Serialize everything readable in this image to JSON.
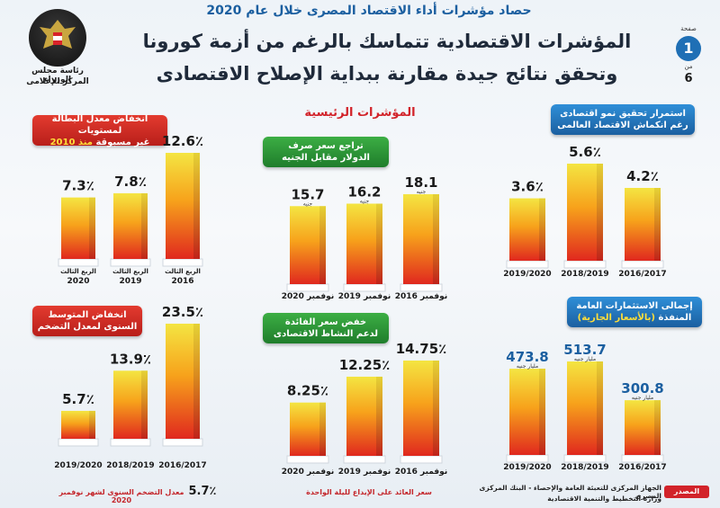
{
  "header": {
    "top_strip": "حصاد مؤشرات أداء الاقتصاد المصرى خلال عام 2020",
    "title_line_1": "المؤشرات الاقتصادية تتماسك بالرغم من أزمة كورونا",
    "title_line_2": "وتحقق نتائج جيدة مقارنة ببداية الإصلاح الاقتصادى",
    "main_heading": "المؤشرات الرئيسية"
  },
  "logo": {
    "text_1": "رئاسة مجلس الوزراء",
    "text_2": "المركز الإعلامى"
  },
  "page": {
    "label": "صفحة",
    "number": "1",
    "of": "من",
    "total": "6"
  },
  "colors": {
    "bar_top": "#f4e542",
    "bar_mid": "#f7a21b",
    "bar_bottom": "#e0281e",
    "red_title": "#c4262b",
    "green_title": "#2e9a3a",
    "blue_title": "#1f6fb5",
    "value_dark": "#1a1a1a",
    "value_blue": "#1b5fa0"
  },
  "chart_data": [
    {
      "id": "unemployment",
      "type": "bar",
      "title_line_1": "انخفاض معدل البطالة لمستويات",
      "title_line_2": "غير مسبوقة",
      "title_highlight": "منذ 2010",
      "categories": [
        "الربع الثالث 2016",
        "الربع الثالث 2019",
        "الربع الثالث 2020"
      ],
      "category_lines": [
        [
          "الربع الثالث",
          "2016"
        ],
        [
          "الربع الثالث",
          "2019"
        ],
        [
          "الربع الثالث",
          "2020"
        ]
      ],
      "values": [
        12.6,
        7.8,
        7.3
      ],
      "value_labels": [
        "12.6٪",
        "7.8٪",
        "7.3٪"
      ],
      "unit": "%"
    },
    {
      "id": "exchange_rate",
      "type": "bar",
      "title_line_1": "تراجع سعر صرف",
      "title_line_2": "الدولار مقابل الجنيه",
      "categories": [
        "نوفمبر 2016",
        "نوفمبر 2019",
        "نوفمبر 2020"
      ],
      "values": [
        18.1,
        16.2,
        15.7
      ],
      "value_labels": [
        "18.1",
        "16.2",
        "15.7"
      ],
      "unit": "جنيه"
    },
    {
      "id": "gdp_growth",
      "type": "bar",
      "title_line_1": "استمرار تحقيق نمو اقتصادى",
      "title_line_2": "رغم انكماش الاقتصاد العالمى",
      "categories": [
        "2016/2017",
        "2018/2019",
        "2019/2020"
      ],
      "values": [
        4.2,
        5.6,
        3.6
      ],
      "value_labels": [
        "4.2٪",
        "5.6٪",
        "3.6٪"
      ],
      "unit": "%"
    },
    {
      "id": "inflation",
      "type": "bar",
      "title_line_1": "انخفاض المتوسط",
      "title_line_2": "السنوى لمعدل التضخم",
      "categories": [
        "2016/2017",
        "2018/2019",
        "2019/2020"
      ],
      "values": [
        23.5,
        13.9,
        5.7
      ],
      "value_labels": [
        "23.5٪",
        "13.9٪",
        "5.7٪"
      ],
      "unit": "%"
    },
    {
      "id": "interest_rate",
      "type": "bar",
      "title_line_1": "خفض سعر الفائدة",
      "title_line_2": "لدعم النشاط الاقتصادى",
      "categories": [
        "نوفمبر 2016",
        "نوفمبر 2019",
        "نوفمبر 2020"
      ],
      "values": [
        14.75,
        12.25,
        8.25
      ],
      "value_labels": [
        "14.75٪",
        "12.25٪",
        "8.25٪"
      ],
      "unit": "%"
    },
    {
      "id": "investments",
      "type": "bar",
      "title_line_1": "إجمالى الاستثمارات العامة",
      "title_line_2": "المنفذة",
      "title_highlight": "(بالأسعار الجارية)",
      "categories": [
        "2016/2017",
        "2018/2019",
        "2019/2020"
      ],
      "values": [
        300.8,
        513.7,
        473.8
      ],
      "value_labels": [
        "300.8",
        "513.7",
        "473.8"
      ],
      "unit": "مليار جنيه"
    }
  ],
  "notes": {
    "inflation_note": "معدل التضخم السنوى لشهر نوفمبر 2020",
    "inflation_note_value": "5.7٪",
    "interest_note": "سعر العائد على الإيداع لليلة الواحدة"
  },
  "source": {
    "label": "المصدر",
    "line_1": "الجهاز المركزى للتعبئة العامة والإحصاء - البنك المركزى المصرى",
    "line_2": "وزارة التخطيط والتنمية الاقتصادية"
  }
}
